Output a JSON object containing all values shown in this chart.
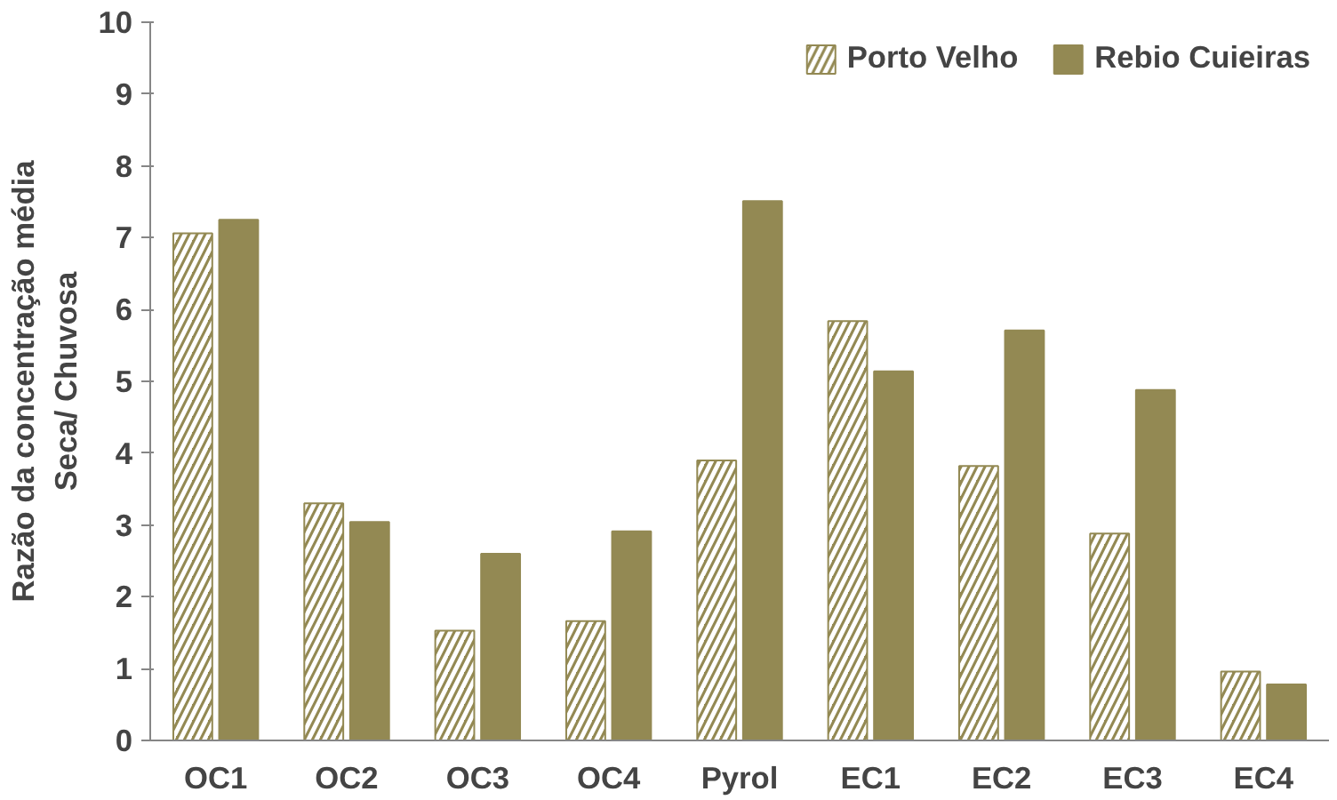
{
  "chart_data": {
    "type": "bar",
    "ylabel": "Razão da concentração média\nSeca/ Chuvosa",
    "categories": [
      "OC1",
      "OC2",
      "OC3",
      "OC4",
      "Pyrol",
      "EC1",
      "EC2",
      "EC3",
      "EC4"
    ],
    "series": [
      {
        "name": "Porto Velho",
        "color": "#938953",
        "values": [
          7.06,
          3.3,
          1.53,
          1.66,
          3.9,
          5.84,
          3.82,
          2.88,
          0.96
        ]
      },
      {
        "name": "Rebio Cuieiras",
        "color": "#938953",
        "values": [
          7.25,
          3.04,
          2.6,
          2.91,
          7.51,
          5.14,
          5.71,
          4.88,
          0.78
        ]
      }
    ],
    "ylim": [
      0,
      10
    ],
    "yticks": [
      0,
      1,
      2,
      3,
      4,
      5,
      6,
      7,
      8,
      9,
      10
    ],
    "grid": false,
    "legend": "top right"
  }
}
